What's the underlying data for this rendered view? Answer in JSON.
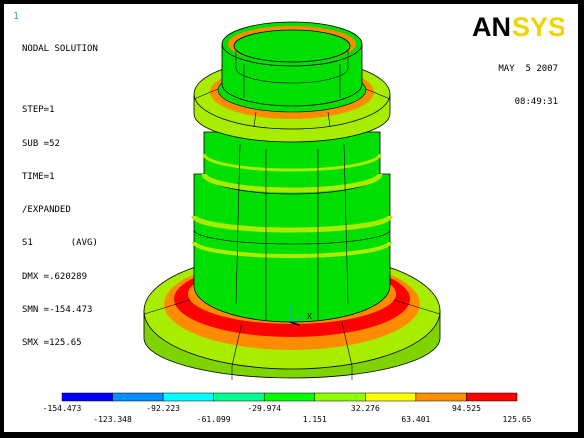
{
  "window_number": "1",
  "brand": {
    "logo_text": "ANSYS"
  },
  "info": {
    "title": "NODAL SOLUTION",
    "lines": [
      "STEP=1",
      "SUB =52",
      "TIME=1",
      "/EXPANDED",
      "S1       (AVG)",
      "DMX =.620289",
      "SMN =-154.473",
      "SMX =125.65"
    ]
  },
  "stamp": {
    "date": "MAY  5 2007",
    "time": "08:49:31"
  },
  "triad": {
    "x_label": "X"
  },
  "legend": {
    "colors": [
      "#0000ff",
      "#0090ff",
      "#00ffff",
      "#00ff90",
      "#00ff00",
      "#90ff00",
      "#ffff00",
      "#ff9000",
      "#ff0000"
    ],
    "labels": [
      "-154.473",
      "-123.348",
      "-92.223",
      "-61.099",
      "-29.974",
      "1.151",
      "32.276",
      "63.401",
      "94.525",
      "125.65"
    ]
  },
  "colors": {
    "model_green": "#00e000",
    "band_yellow": "#a8ec00",
    "band_orange": "#ff8c00",
    "band_red": "#ff0000"
  }
}
